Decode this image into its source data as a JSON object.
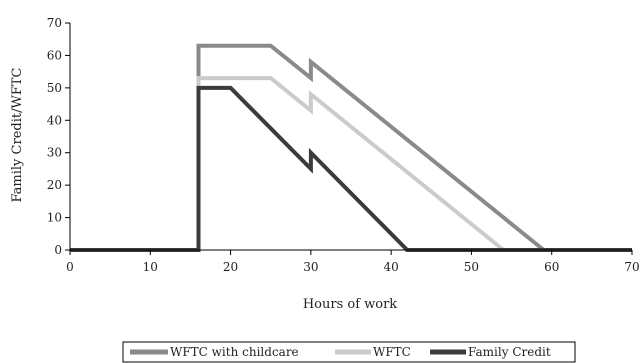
{
  "chart_data": {
    "type": "line",
    "xlabel": "Hours of work",
    "ylabel": "Family Credit/WFTC",
    "xlim": [
      0,
      70
    ],
    "ylim": [
      0,
      70
    ],
    "xticks": [
      0,
      10,
      20,
      30,
      40,
      50,
      60,
      70
    ],
    "yticks": [
      0,
      10,
      20,
      30,
      40,
      50,
      60,
      70
    ],
    "grid": false,
    "legend_position": "bottom",
    "series": [
      {
        "name": "WFTC with childcare",
        "color": "#8a8a8a",
        "points": [
          [
            0,
            0
          ],
          [
            16,
            0
          ],
          [
            16,
            63
          ],
          [
            25,
            63
          ],
          [
            30,
            53
          ],
          [
            30,
            58
          ],
          [
            59,
            0
          ]
        ]
      },
      {
        "name": "WFTC",
        "color": "#cbcbcb",
        "points": [
          [
            0,
            0
          ],
          [
            16,
            0
          ],
          [
            16,
            53
          ],
          [
            25,
            53
          ],
          [
            30,
            43
          ],
          [
            30,
            48
          ],
          [
            54,
            0
          ],
          [
            59,
            0
          ]
        ]
      },
      {
        "name": "Family Credit",
        "color": "#3b3b3b",
        "points": [
          [
            0,
            0
          ],
          [
            16,
            0
          ],
          [
            16,
            50
          ],
          [
            20,
            50
          ],
          [
            30,
            25
          ],
          [
            30,
            30
          ],
          [
            42,
            0
          ],
          [
            70,
            0
          ]
        ]
      }
    ]
  }
}
